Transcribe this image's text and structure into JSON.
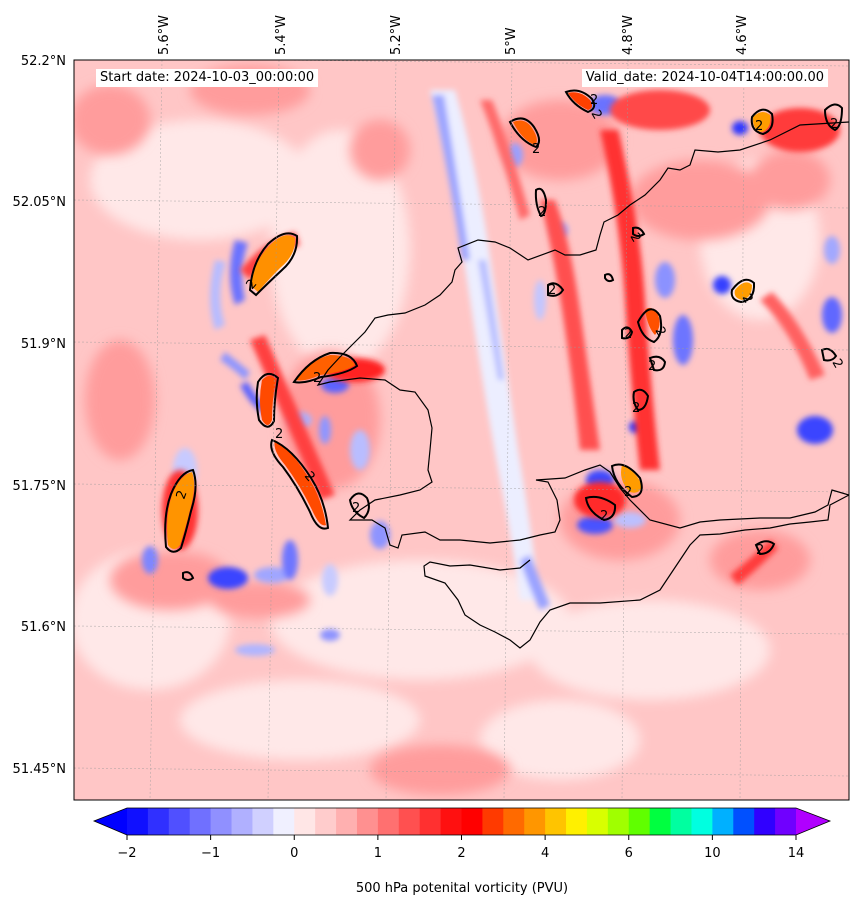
{
  "map": {
    "start_label": "Start date: 2024-10-03_00:00:00",
    "valid_label": "Valid_date: 2024-10-04T14:00:00.00",
    "lon_labels": [
      "5.6°W",
      "5.4°W",
      "5.2°W",
      "5°W",
      "4.8°W",
      "4.6°W"
    ],
    "lat_labels": [
      "52.2°N",
      "52.05°N",
      "51.9°N",
      "51.75°N",
      "51.6°N",
      "51.45°N"
    ],
    "contour_label": "2",
    "colorbar": {
      "ticks": [
        "−2",
        "−1",
        "0",
        "1",
        "2",
        "4",
        "6",
        "10",
        "14"
      ],
      "label": "500 hPa potenital vorticity (PVU)",
      "colors": [
        "#1010ff",
        "#3030ff",
        "#5050ff",
        "#7070ff",
        "#9090ff",
        "#b0b0ff",
        "#d0d0ff",
        "#f0f0ff",
        "#ffe6e6",
        "#ffcccc",
        "#ffb0b0",
        "#ff9090",
        "#ff7070",
        "#ff5050",
        "#ff3030",
        "#ff1010",
        "#ff0000",
        "#ff3a00",
        "#ff6a00",
        "#ff9600",
        "#ffc400",
        "#fff000",
        "#d8ff00",
        "#a0ff00",
        "#60ff00",
        "#00ff40",
        "#00ffa0",
        "#00ffe0",
        "#00b0ff",
        "#0050ff",
        "#3000ff",
        "#7000ff"
      ],
      "under_color": "#0000ff",
      "over_color": "#b000ff"
    },
    "background_color": "#ffc6c6"
  }
}
